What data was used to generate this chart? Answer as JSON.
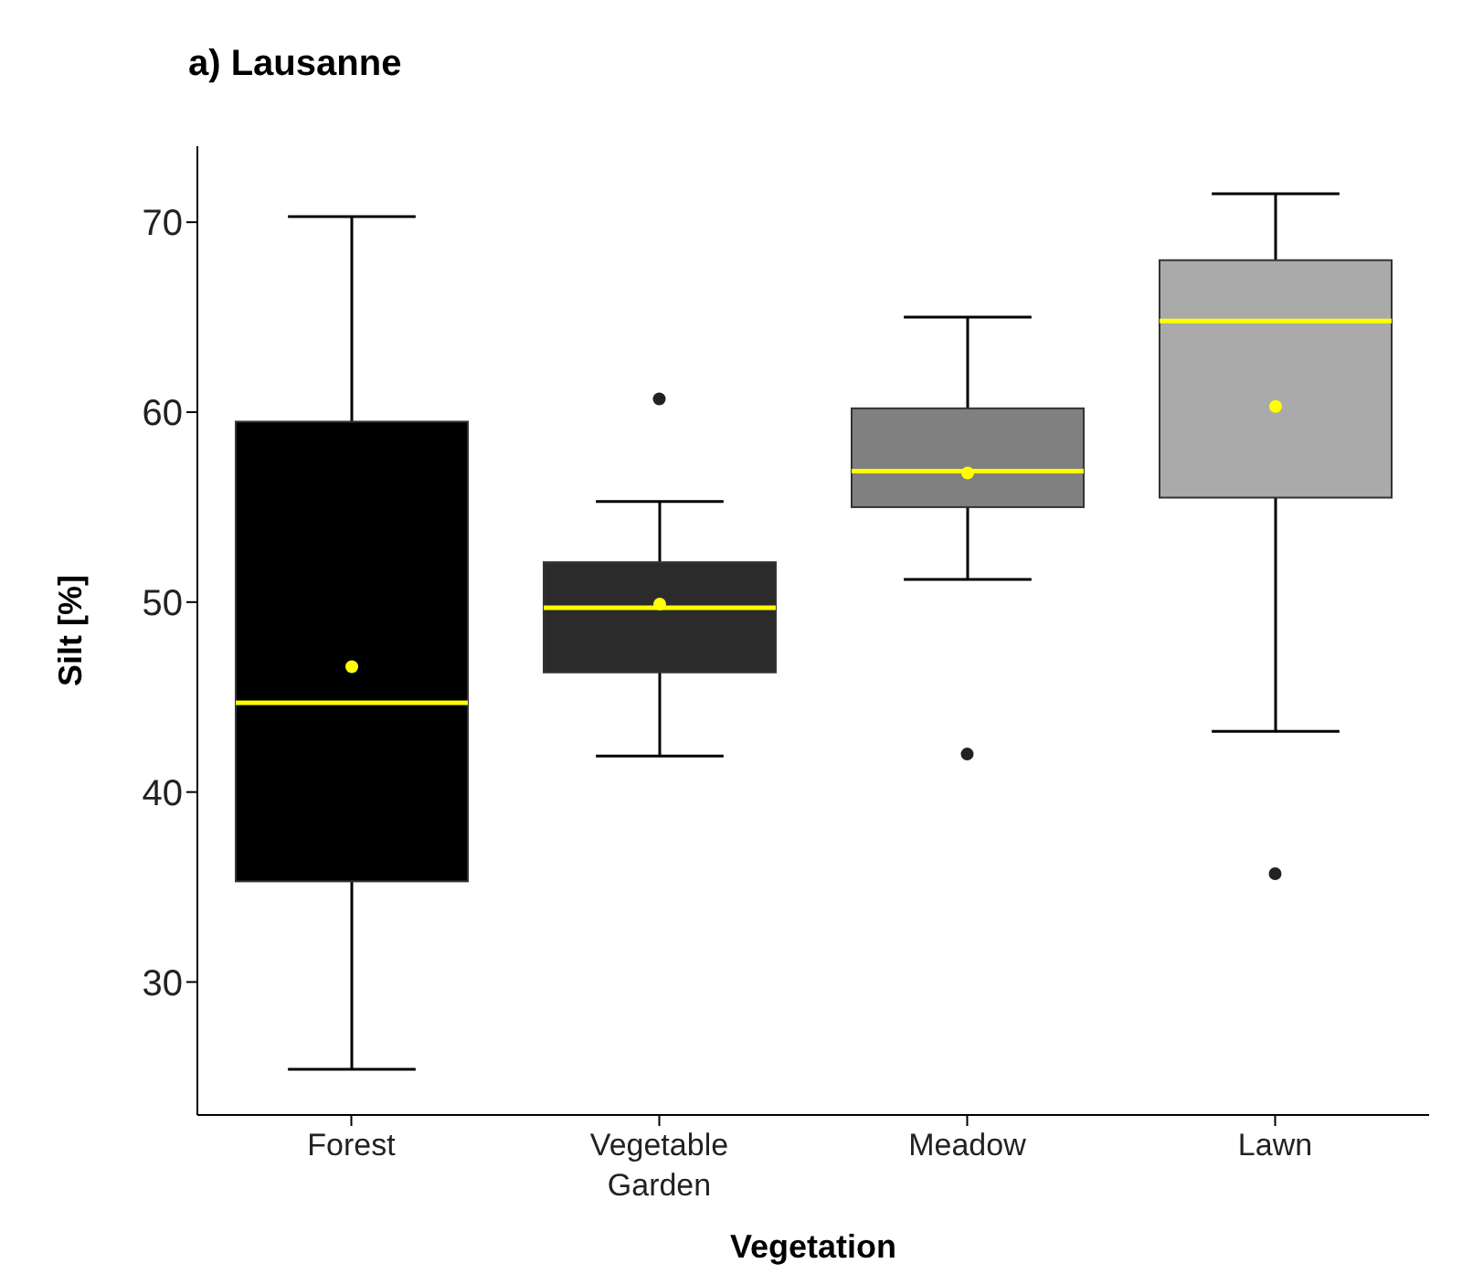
{
  "chart_data": {
    "type": "box",
    "title": "a) Lausanne",
    "xlabel": "Vegetation",
    "ylabel": "Silt [%]",
    "categories": [
      "Forest",
      "Vegetable Garden",
      "Meadow",
      "Lawn"
    ],
    "colors": [
      "#000000",
      "#2b2b2b",
      "#808080",
      "#aaaaaa"
    ],
    "boxes": [
      {
        "low": 25.4,
        "q1": 35.3,
        "median": 44.7,
        "q3": 59.5,
        "high": 70.3,
        "mean": 46.6
      },
      {
        "low": 41.9,
        "q1": 46.3,
        "median": 49.7,
        "q3": 52.1,
        "high": 55.3,
        "mean": 49.9,
        "outliers": [
          60.7
        ]
      },
      {
        "low": 51.2,
        "q1": 55.0,
        "median": 56.9,
        "q3": 60.2,
        "high": 65.0,
        "mean": 56.8,
        "outliers": [
          42.0
        ]
      },
      {
        "low": 43.2,
        "q1": 55.5,
        "median": 64.8,
        "q3": 68.0,
        "high": 71.5,
        "mean": 60.3,
        "outliers": [
          35.7
        ]
      }
    ],
    "ylim": [
      23,
      74
    ],
    "yticks": [
      30,
      40,
      50,
      60,
      70
    ]
  }
}
